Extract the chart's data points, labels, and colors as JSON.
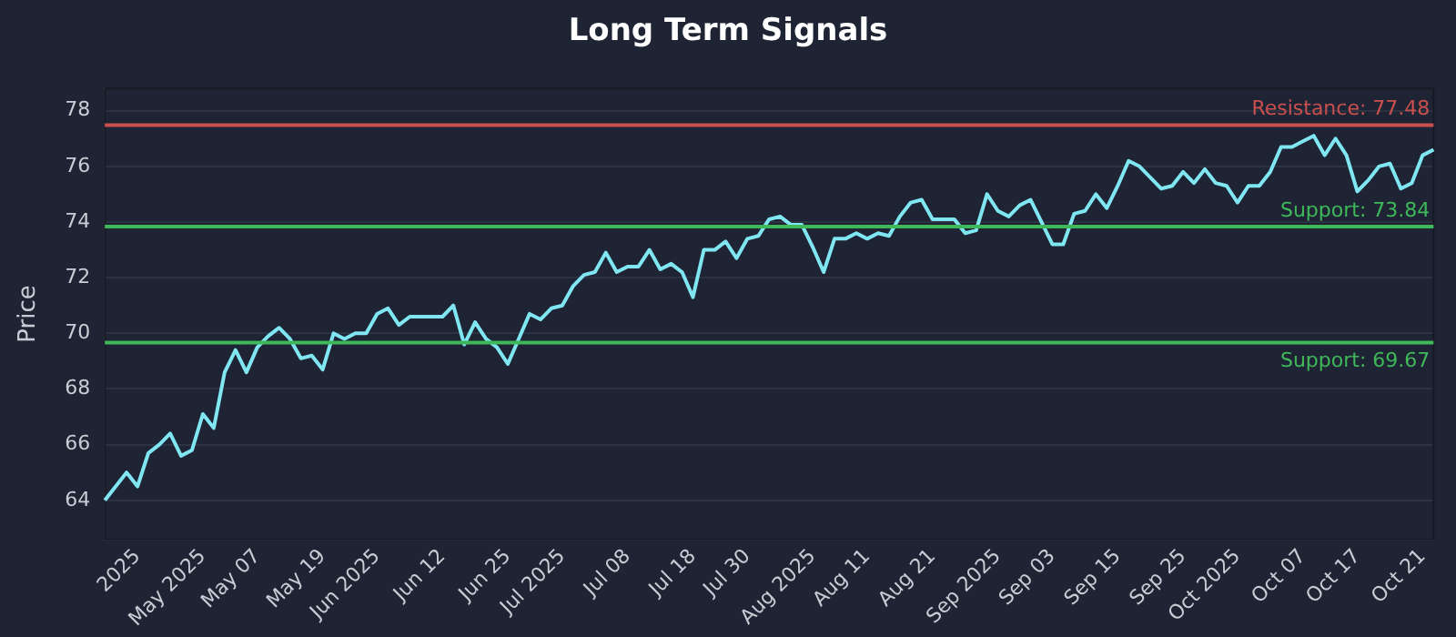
{
  "chart_data": {
    "type": "line",
    "title": "Long Term Signals",
    "ylabel": "Price",
    "categories": [
      null,
      null,
      null,
      "2025",
      null,
      null,
      null,
      null,
      null,
      "May 2025",
      null,
      null,
      null,
      null,
      "May 07",
      null,
      null,
      null,
      null,
      null,
      "May 19",
      null,
      null,
      null,
      null,
      "Jun 2025",
      null,
      null,
      null,
      null,
      null,
      "Jun 12",
      null,
      null,
      null,
      null,
      null,
      "Jun 25",
      null,
      null,
      null,
      null,
      "Jul 2025",
      null,
      null,
      null,
      null,
      null,
      "Jul 08",
      null,
      null,
      null,
      null,
      null,
      "Jul 18",
      null,
      null,
      null,
      null,
      "Jul 30",
      null,
      null,
      null,
      null,
      null,
      "Aug 2025",
      null,
      null,
      null,
      null,
      "Aug 11",
      null,
      null,
      null,
      null,
      null,
      "Aug 21",
      null,
      null,
      null,
      null,
      null,
      "Sep 2025",
      null,
      null,
      null,
      null,
      "Sep 03",
      null,
      null,
      null,
      null,
      null,
      "Sep 15",
      null,
      null,
      null,
      null,
      null,
      "Sep 25",
      null,
      null,
      null,
      null,
      "Oct 2025",
      null,
      null,
      null,
      null,
      null,
      "Oct 07",
      null,
      null,
      null,
      null,
      "Oct 17",
      null,
      null,
      null,
      null,
      null,
      "Oct 21",
      null
    ],
    "series": [
      {
        "color": "#7fe6f2",
        "values": [
          64.0,
          64.5,
          65.0,
          64.5,
          65.7,
          66.0,
          66.4,
          65.6,
          65.8,
          67.1,
          66.6,
          68.6,
          69.4,
          68.6,
          69.5,
          69.9,
          70.2,
          69.8,
          69.1,
          69.2,
          68.7,
          70.0,
          69.8,
          70.0,
          70.0,
          70.7,
          70.9,
          70.3,
          70.6,
          70.6,
          70.6,
          70.6,
          71.0,
          69.6,
          70.4,
          69.8,
          69.5,
          68.9,
          69.8,
          70.7,
          70.5,
          70.9,
          71.0,
          71.7,
          72.1,
          72.2,
          72.9,
          72.2,
          72.4,
          72.4,
          73.0,
          72.3,
          72.5,
          72.2,
          71.3,
          73.0,
          73.0,
          73.3,
          72.7,
          73.4,
          73.5,
          74.1,
          74.2,
          73.9,
          73.9,
          73.1,
          72.2,
          73.4,
          73.4,
          73.6,
          73.4,
          73.6,
          73.5,
          74.2,
          74.7,
          74.8,
          74.1,
          74.1,
          74.1,
          73.6,
          73.7,
          75.0,
          74.4,
          74.2,
          74.6,
          74.8,
          74.0,
          73.2,
          73.2,
          74.3,
          74.4,
          75.0,
          74.5,
          75.3,
          76.2,
          76.0,
          75.6,
          75.2,
          75.3,
          75.8,
          75.4,
          75.9,
          75.4,
          75.3,
          74.7,
          75.3,
          75.3,
          75.8,
          76.7,
          76.7,
          76.9,
          77.1,
          76.4,
          77.0,
          76.4,
          75.1,
          75.5,
          76.0,
          76.1,
          75.2,
          75.4,
          76.4,
          76.6
        ]
      }
    ],
    "ylim": [
      62.6,
      78.8
    ],
    "yticks": [
      64,
      66,
      68,
      70,
      72,
      74,
      76,
      78
    ],
    "grid": "y",
    "legend": false,
    "marker": "none",
    "line_style": "solid",
    "ref_lines": [
      {
        "axis": "y",
        "value": 77.48,
        "label": "Resistance: 77.48",
        "color": "#c9504f"
      },
      {
        "axis": "y",
        "value": 73.84,
        "label": "Support: 73.84",
        "color": "#3fb85a"
      },
      {
        "axis": "y",
        "value": 69.67,
        "label": "Support: 69.67",
        "color": "#3fb85a"
      }
    ]
  }
}
